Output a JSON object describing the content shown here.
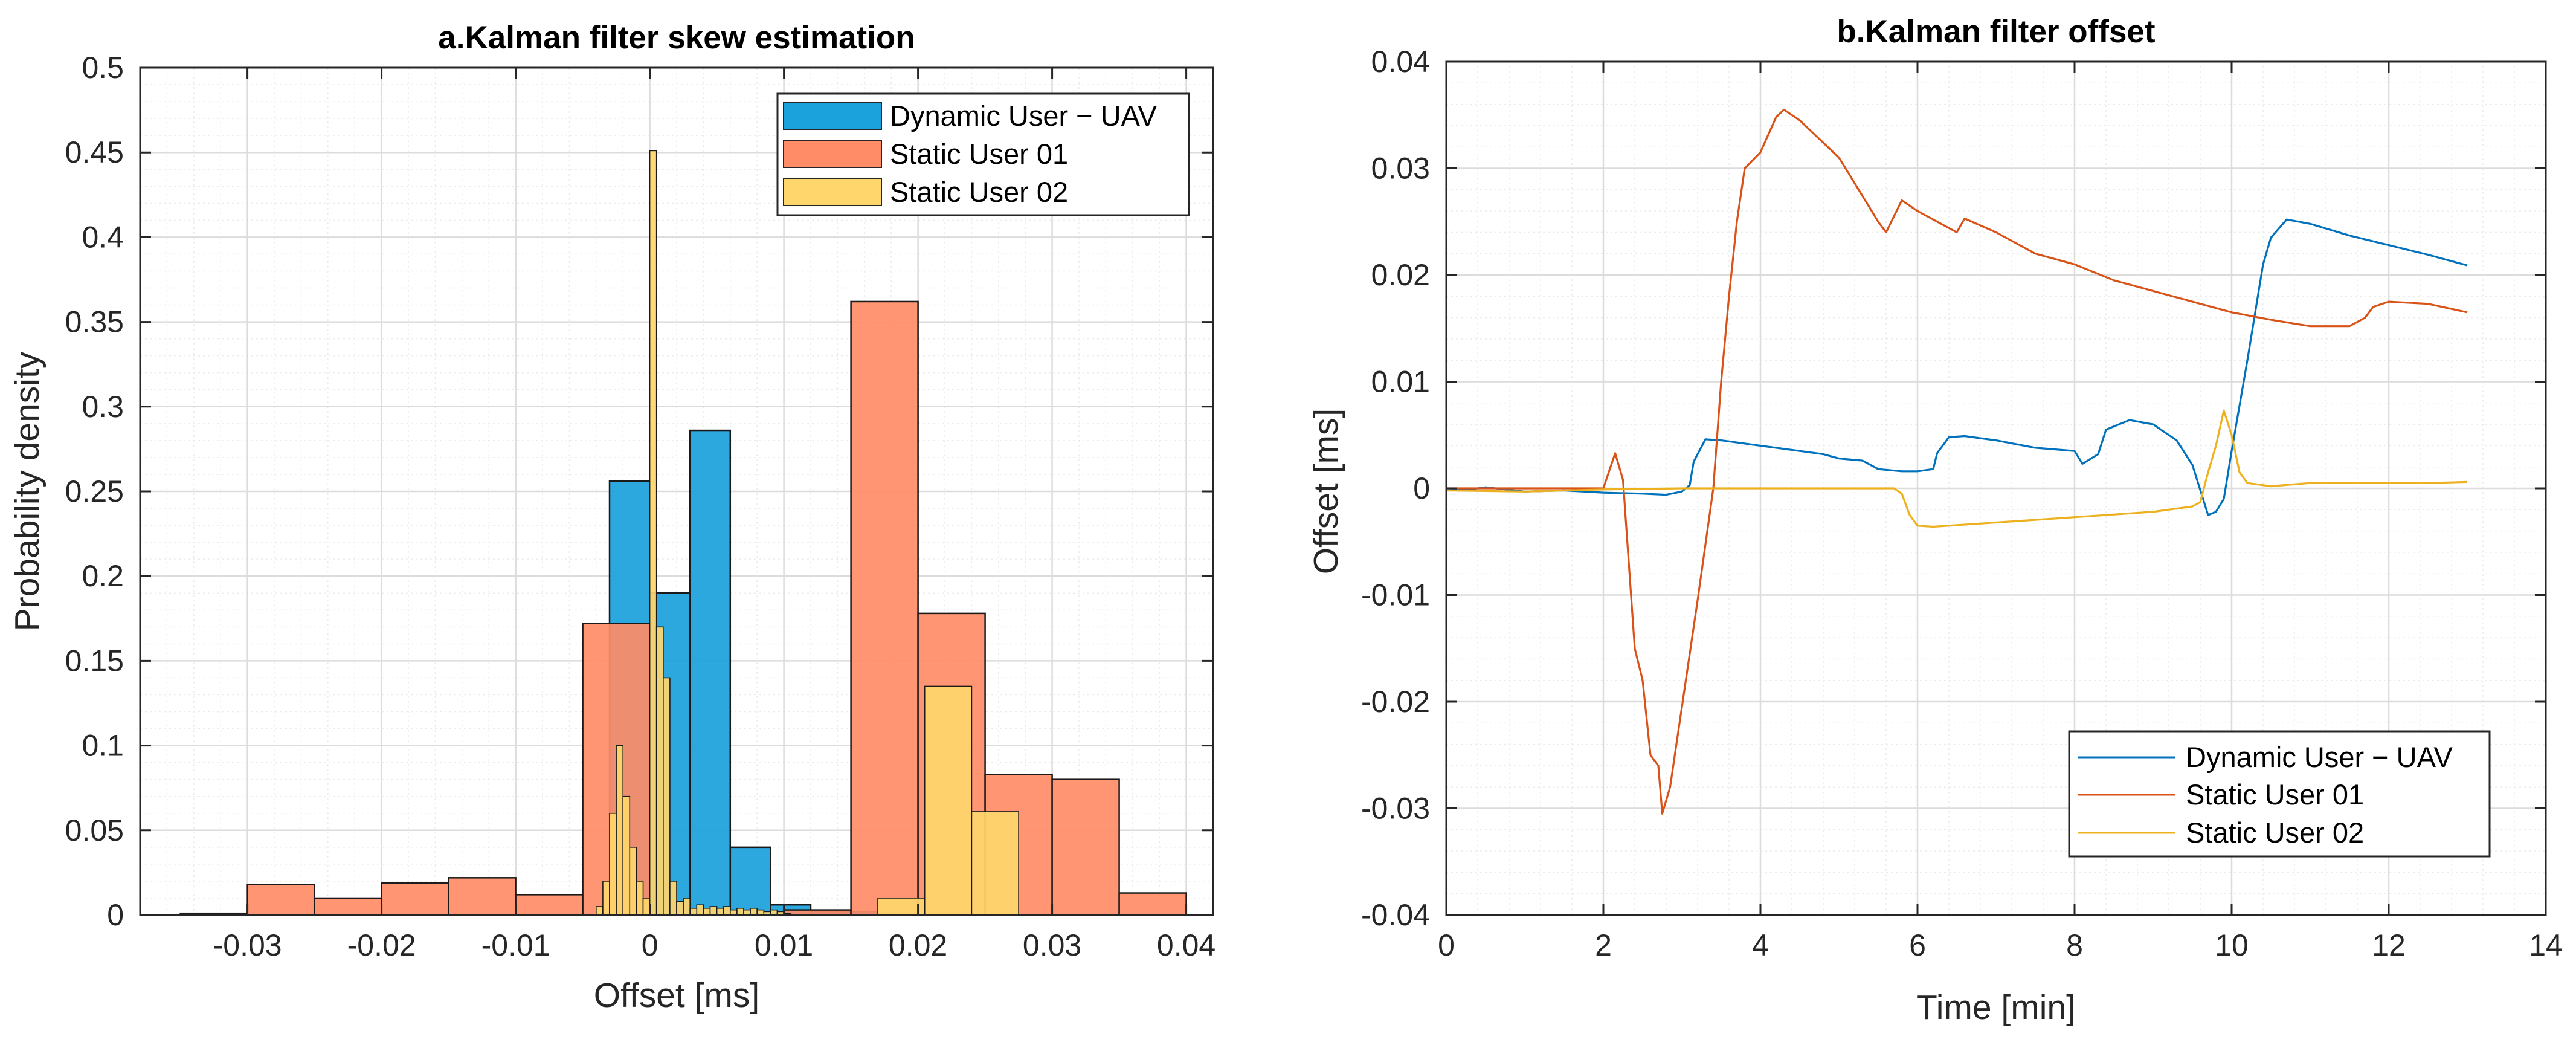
{
  "colors": {
    "uav": "#0072BD",
    "user01": "#D95319",
    "user02": "#EDB120",
    "hist_uav": "#1BA1DC",
    "hist_user01": "#FF8C66",
    "hist_user02": "#FFD66B"
  },
  "chart_data": [
    {
      "type": "histogram",
      "title": "a.Kalman filter skew estimation",
      "xlabel": "Offset [ms]",
      "ylabel": "Probability density",
      "xlim": [
        -0.038,
        0.042
      ],
      "ylim": [
        0,
        0.5
      ],
      "xticks": [
        -0.03,
        -0.02,
        -0.01,
        0,
        0.01,
        0.02,
        0.03,
        0.04
      ],
      "xtick_labels": [
        "-0.03",
        "-0.02",
        "-0.01",
        "0",
        "0.01",
        "0.02",
        "0.03",
        "0.04"
      ],
      "yticks": [
        0,
        0.05,
        0.1,
        0.15,
        0.2,
        0.25,
        0.3,
        0.35,
        0.4,
        0.45,
        0.5
      ],
      "ytick_labels": [
        "0",
        "0.05",
        "0.1",
        "0.15",
        "0.2",
        "0.25",
        "0.3",
        "0.35",
        "0.4",
        "0.45",
        "0.5"
      ],
      "grid": true,
      "legend_position": "top-right",
      "series": [
        {
          "name": "Dynamic User − UAV",
          "bins": [
            [
              -0.003,
              0.0,
              0.256
            ],
            [
              0.0,
              0.003,
              0.19
            ],
            [
              0.003,
              0.006,
              0.286
            ],
            [
              0.006,
              0.009,
              0.04
            ],
            [
              0.009,
              0.012,
              0.006
            ],
            [
              0.012,
              0.015,
              0.002
            ],
            [
              0.015,
              0.018,
              0.002
            ],
            [
              0.018,
              0.021,
              0.001
            ],
            [
              0.021,
              0.024,
              0.001
            ]
          ]
        },
        {
          "name": "Static User 01",
          "bins": [
            [
              -0.035,
              -0.03,
              0.001
            ],
            [
              -0.03,
              -0.025,
              0.018
            ],
            [
              -0.025,
              -0.02,
              0.01
            ],
            [
              -0.02,
              -0.015,
              0.019
            ],
            [
              -0.015,
              -0.01,
              0.022
            ],
            [
              -0.01,
              -0.005,
              0.012
            ],
            [
              -0.005,
              0.0,
              0.172
            ],
            [
              0.0,
              0.005,
              0.0
            ],
            [
              0.005,
              0.01,
              0.0
            ],
            [
              0.01,
              0.015,
              0.003
            ],
            [
              0.015,
              0.02,
              0.362
            ],
            [
              0.02,
              0.025,
              0.178
            ],
            [
              0.025,
              0.03,
              0.083
            ],
            [
              0.03,
              0.035,
              0.08
            ],
            [
              0.035,
              0.04,
              0.013
            ]
          ]
        },
        {
          "name": "Static User 02",
          "bins": [
            [
              -0.004,
              -0.0035,
              0.005
            ],
            [
              -0.0035,
              -0.003,
              0.02
            ],
            [
              -0.003,
              -0.0025,
              0.06
            ],
            [
              -0.0025,
              -0.002,
              0.1
            ],
            [
              -0.002,
              -0.0015,
              0.07
            ],
            [
              -0.0015,
              -0.001,
              0.04
            ],
            [
              -0.001,
              -0.0005,
              0.02
            ],
            [
              -0.0005,
              0.0,
              0.01
            ],
            [
              0.0,
              0.0005,
              0.451
            ],
            [
              0.0005,
              0.001,
              0.17
            ],
            [
              0.001,
              0.0015,
              0.14
            ],
            [
              0.0015,
              0.002,
              0.02
            ],
            [
              0.002,
              0.0025,
              0.008
            ],
            [
              0.0025,
              0.003,
              0.01
            ],
            [
              0.003,
              0.0035,
              0.004
            ],
            [
              0.0035,
              0.004,
              0.006
            ],
            [
              0.004,
              0.0045,
              0.004
            ],
            [
              0.0045,
              0.005,
              0.005
            ],
            [
              0.005,
              0.0055,
              0.004
            ],
            [
              0.0055,
              0.006,
              0.005
            ],
            [
              0.006,
              0.0065,
              0.003
            ],
            [
              0.0065,
              0.007,
              0.004
            ],
            [
              0.007,
              0.0075,
              0.003
            ],
            [
              0.0075,
              0.008,
              0.004
            ],
            [
              0.008,
              0.0085,
              0.003
            ],
            [
              0.0085,
              0.009,
              0.002
            ],
            [
              0.009,
              0.0095,
              0.003
            ],
            [
              0.0095,
              0.01,
              0.002
            ],
            [
              0.01,
              0.0105,
              0.001
            ],
            [
              0.017,
              0.0205,
              0.01
            ],
            [
              0.0205,
              0.024,
              0.135
            ],
            [
              0.024,
              0.0275,
              0.061
            ]
          ]
        }
      ]
    },
    {
      "type": "line",
      "title": "b.Kalman filter offset",
      "xlabel": "Time [min]",
      "ylabel": "Offset [ms]",
      "xlim": [
        0,
        14
      ],
      "ylim": [
        -0.04,
        0.04
      ],
      "xticks": [
        0,
        2,
        4,
        6,
        8,
        10,
        12,
        14
      ],
      "xtick_labels": [
        "0",
        "2",
        "4",
        "6",
        "8",
        "10",
        "12",
        "14"
      ],
      "yticks": [
        -0.04,
        -0.03,
        -0.02,
        -0.01,
        0,
        0.01,
        0.02,
        0.03,
        0.04
      ],
      "ytick_labels": [
        "-0.04",
        "-0.03",
        "-0.02",
        "-0.01",
        "0",
        "0.01",
        "0.02",
        "0.03",
        "0.04"
      ],
      "grid": true,
      "legend_position": "bottom-right",
      "series": [
        {
          "name": "Dynamic User − UAV",
          "x": [
            0,
            0.3,
            0.5,
            1.0,
            1.5,
            2.0,
            2.5,
            2.8,
            3.0,
            3.1,
            3.15,
            3.3,
            3.5,
            4.0,
            4.5,
            4.8,
            5.0,
            5.3,
            5.5,
            5.8,
            6.0,
            6.2,
            6.25,
            6.4,
            6.6,
            7.0,
            7.5,
            8.0,
            8.1,
            8.3,
            8.4,
            8.7,
            9.0,
            9.3,
            9.5,
            9.7,
            9.8,
            9.9,
            10.0,
            10.2,
            10.4,
            10.5,
            10.7,
            11.0,
            11.5,
            12.0,
            12.5,
            13.0
          ],
          "y": [
            0.0,
            -0.0001,
            0.0001,
            -0.0003,
            -0.0002,
            -0.0004,
            -0.0005,
            -0.0006,
            -0.0003,
            0.0003,
            0.0025,
            0.0046,
            0.0045,
            0.004,
            0.0035,
            0.0032,
            0.0028,
            0.0026,
            0.0018,
            0.0016,
            0.0016,
            0.0018,
            0.0033,
            0.0048,
            0.0049,
            0.0045,
            0.0038,
            0.0035,
            0.0023,
            0.0032,
            0.0055,
            0.0064,
            0.006,
            0.0045,
            0.0022,
            -0.0025,
            -0.0022,
            -0.001,
            0.0035,
            0.012,
            0.021,
            0.0235,
            0.0252,
            0.0248,
            0.0237,
            0.0228,
            0.0219,
            0.0209
          ]
        },
        {
          "name": "Static User 01",
          "x": [
            0,
            1.0,
            2.0,
            2.15,
            2.25,
            2.4,
            2.5,
            2.6,
            2.7,
            2.75,
            2.85,
            3.0,
            3.2,
            3.4,
            3.5,
            3.6,
            3.7,
            3.8,
            4.0,
            4.2,
            4.3,
            4.5,
            5.0,
            5.5,
            5.6,
            5.8,
            6.0,
            6.5,
            6.6,
            7.0,
            7.5,
            8.0,
            8.5,
            9.0,
            9.5,
            10.0,
            10.5,
            11.0,
            11.5,
            11.7,
            11.8,
            12.0,
            12.5,
            13.0
          ],
          "y": [
            0.0,
            0.0,
            0.0,
            0.0033,
            0.0008,
            -0.015,
            -0.018,
            -0.025,
            -0.026,
            -0.0305,
            -0.028,
            -0.0205,
            -0.0105,
            0.0,
            0.01,
            0.018,
            0.025,
            0.03,
            0.0315,
            0.0348,
            0.0355,
            0.0345,
            0.031,
            0.025,
            0.024,
            0.027,
            0.026,
            0.024,
            0.0253,
            0.024,
            0.022,
            0.021,
            0.0195,
            0.0185,
            0.0175,
            0.0165,
            0.0158,
            0.0152,
            0.0152,
            0.016,
            0.017,
            0.0175,
            0.0173,
            0.0165
          ]
        },
        {
          "name": "Static User 02",
          "x": [
            0,
            1.0,
            2.0,
            3.0,
            4.0,
            5.0,
            5.7,
            5.8,
            5.9,
            6.0,
            6.2,
            7.0,
            8.0,
            9.0,
            9.5,
            9.6,
            9.7,
            9.8,
            9.9,
            10.0,
            10.1,
            10.2,
            10.5,
            11.0,
            11.5,
            12.0,
            12.5,
            13.0
          ],
          "y": [
            -0.0002,
            -0.0003,
            -0.0001,
            0.0,
            0.0,
            0.0,
            0.0,
            -0.0005,
            -0.0025,
            -0.0035,
            -0.0036,
            -0.0032,
            -0.0027,
            -0.0022,
            -0.0017,
            -0.0013,
            0.0015,
            0.004,
            0.0073,
            0.005,
            0.0015,
            0.0005,
            0.0002,
            0.0005,
            0.0005,
            0.0005,
            0.0005,
            0.0006
          ]
        }
      ]
    }
  ]
}
